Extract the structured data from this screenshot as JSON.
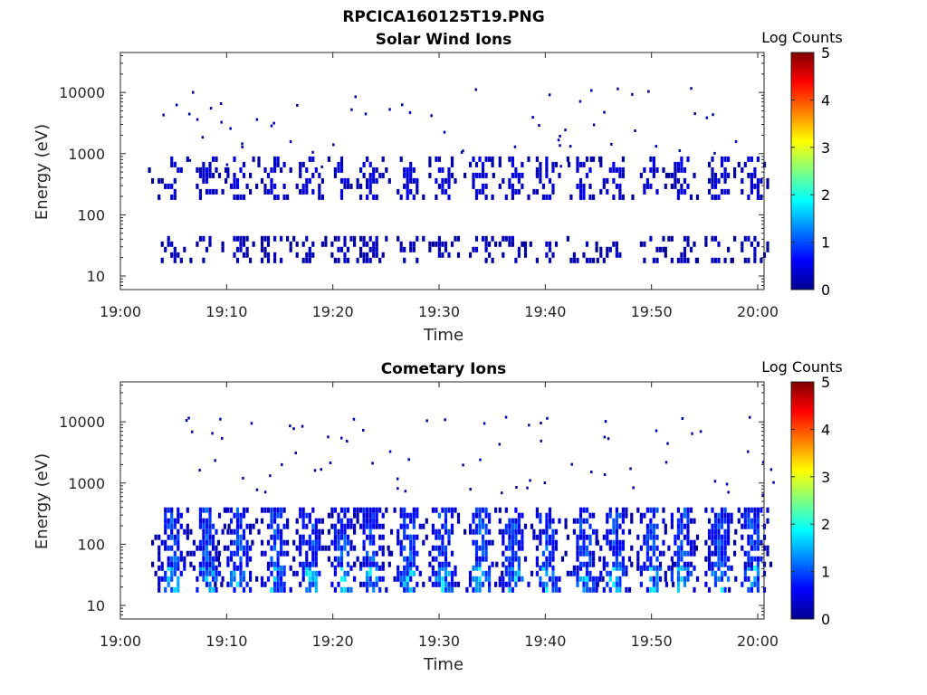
{
  "figure_title": "RPCICA160125T19.PNG",
  "colorbar_label": "Log Counts",
  "colors": {
    "background": "#ffffff",
    "axes": "#262626",
    "colormap": [
      "#00008f",
      "#0000ff",
      "#00ffff",
      "#ffff00",
      "#ff0000",
      "#800000"
    ]
  },
  "chart_data": [
    {
      "type": "heatmap",
      "title": "Solar Wind Ions",
      "xlabel": "Time",
      "ylabel": "Energy (eV)",
      "x_ticks": [
        "19:00",
        "19:10",
        "19:20",
        "19:30",
        "19:40",
        "19:50",
        "20:00"
      ],
      "xlim": [
        "19:00",
        "20:00"
      ],
      "y_scale": "log",
      "y_ticks": [
        "10",
        "100",
        "1000",
        "10000"
      ],
      "ylim": [
        6,
        45000
      ],
      "colorbar": {
        "label": "Log Counts",
        "ticks": [
          "0",
          "1",
          "2",
          "3",
          "4",
          "5"
        ],
        "range": [
          0,
          5
        ]
      },
      "bursts_minutes": [
        4.8,
        8.1,
        11.0,
        14.5,
        17.8,
        20.8,
        23.5,
        27.0,
        30.3,
        33.8,
        36.9,
        40.1,
        43.6,
        46.4,
        49.9,
        52.8,
        56.3,
        59.4
      ],
      "bands_eV": [
        {
          "e_min": 18,
          "e_max": 45,
          "log_counts": 0.3
        },
        {
          "e_min": 200,
          "e_max": 900,
          "log_counts": 0.5
        }
      ],
      "grid": false
    },
    {
      "type": "heatmap",
      "title": "Cometary Ions",
      "xlabel": "Time",
      "ylabel": "Energy (eV)",
      "x_ticks": [
        "19:00",
        "19:10",
        "19:20",
        "19:30",
        "19:40",
        "19:50",
        "20:00"
      ],
      "xlim": [
        "19:00",
        "20:00"
      ],
      "y_scale": "log",
      "y_ticks": [
        "10",
        "100",
        "1000",
        "10000"
      ],
      "ylim": [
        6,
        45000
      ],
      "colorbar": {
        "label": "Log Counts",
        "ticks": [
          "0",
          "1",
          "2",
          "3",
          "4",
          "5"
        ],
        "range": [
          0,
          5
        ]
      },
      "bursts_minutes": [
        4.8,
        8.1,
        11.0,
        14.5,
        17.8,
        20.8,
        23.5,
        27.0,
        30.3,
        33.8,
        36.9,
        40.1,
        43.6,
        46.4,
        49.9,
        52.8,
        56.3,
        59.4
      ],
      "bands_eV": [
        {
          "e_min": 18,
          "e_max": 45,
          "log_counts": 1.6
        },
        {
          "e_min": 45,
          "e_max": 400,
          "log_counts": 1.0
        }
      ],
      "grid": false
    }
  ]
}
